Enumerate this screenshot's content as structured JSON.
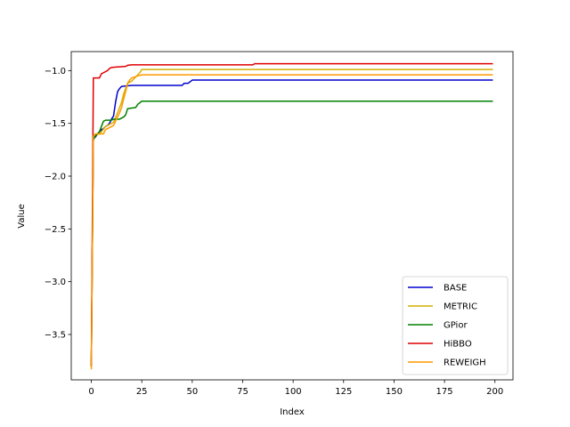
{
  "chart_data": {
    "type": "line",
    "title": "",
    "xlabel": "Index",
    "ylabel": "Value",
    "xlim": [
      -9.95,
      208.95
    ],
    "ylim": [
      -3.93,
      -0.82
    ],
    "xticks": [
      0,
      25,
      50,
      75,
      100,
      125,
      150,
      175,
      200
    ],
    "yticks": [
      -3.5,
      -3.0,
      -2.5,
      -2.0,
      -1.5,
      -1.0
    ],
    "ytick_labels": [
      "−3.5",
      "−3.0",
      "−2.5",
      "−2.0",
      "−1.5",
      "−1.0"
    ],
    "grid": false,
    "legend_position": "lower-right",
    "series": [
      {
        "name": "BASE",
        "color": "#0000cd",
        "points": [
          [
            0,
            -3.8
          ],
          [
            1,
            -1.63
          ],
          [
            2,
            -1.63
          ],
          [
            3,
            -1.6
          ],
          [
            4,
            -1.58
          ],
          [
            5,
            -1.56
          ],
          [
            6,
            -1.55
          ],
          [
            7,
            -1.53
          ],
          [
            8,
            -1.52
          ],
          [
            9,
            -1.5
          ],
          [
            10,
            -1.46
          ],
          [
            11,
            -1.43
          ],
          [
            12,
            -1.3
          ],
          [
            13,
            -1.2
          ],
          [
            14,
            -1.17
          ],
          [
            15,
            -1.15
          ],
          [
            20,
            -1.14
          ],
          [
            30,
            -1.14
          ],
          [
            40,
            -1.14
          ],
          [
            45,
            -1.14
          ],
          [
            46,
            -1.12
          ],
          [
            48,
            -1.12
          ],
          [
            50,
            -1.09
          ],
          [
            60,
            -1.09
          ],
          [
            80,
            -1.09
          ],
          [
            120,
            -1.09
          ],
          [
            160,
            -1.09
          ],
          [
            199,
            -1.09
          ]
        ]
      },
      {
        "name": "METRIC",
        "color": "#d4b000",
        "points": [
          [
            0,
            -3.8
          ],
          [
            1,
            -1.62
          ],
          [
            2,
            -1.61
          ],
          [
            4,
            -1.6
          ],
          [
            5,
            -1.58
          ],
          [
            7,
            -1.53
          ],
          [
            9,
            -1.51
          ],
          [
            11,
            -1.49
          ],
          [
            13,
            -1.4
          ],
          [
            15,
            -1.3
          ],
          [
            16,
            -1.22
          ],
          [
            17,
            -1.17
          ],
          [
            18,
            -1.12
          ],
          [
            20,
            -1.1
          ],
          [
            22,
            -1.06
          ],
          [
            24,
            -1.02
          ],
          [
            25,
            -0.99
          ],
          [
            40,
            -0.99
          ],
          [
            80,
            -0.99
          ],
          [
            120,
            -0.99
          ],
          [
            160,
            -0.99
          ],
          [
            199,
            -0.99
          ]
        ]
      },
      {
        "name": "GPior",
        "color": "#008000",
        "points": [
          [
            0,
            -3.8
          ],
          [
            1,
            -1.66
          ],
          [
            2,
            -1.62
          ],
          [
            4,
            -1.58
          ],
          [
            6,
            -1.48
          ],
          [
            7,
            -1.47
          ],
          [
            10,
            -1.47
          ],
          [
            11,
            -1.46
          ],
          [
            14,
            -1.46
          ],
          [
            16,
            -1.44
          ],
          [
            17,
            -1.42
          ],
          [
            18,
            -1.36
          ],
          [
            22,
            -1.35
          ],
          [
            23,
            -1.32
          ],
          [
            25,
            -1.29
          ],
          [
            40,
            -1.29
          ],
          [
            80,
            -1.29
          ],
          [
            120,
            -1.29
          ],
          [
            160,
            -1.29
          ],
          [
            199,
            -1.29
          ]
        ]
      },
      {
        "name": "HiBBO",
        "color": "#e00000",
        "points": [
          [
            0,
            -3.8
          ],
          [
            1,
            -1.07
          ],
          [
            4,
            -1.07
          ],
          [
            5,
            -1.03
          ],
          [
            6,
            -1.02
          ],
          [
            7,
            -1.01
          ],
          [
            8,
            -1.0
          ],
          [
            9,
            -0.98
          ],
          [
            10,
            -0.97
          ],
          [
            17,
            -0.96
          ],
          [
            18,
            -0.95
          ],
          [
            20,
            -0.945
          ],
          [
            40,
            -0.945
          ],
          [
            80,
            -0.945
          ],
          [
            81,
            -0.935
          ],
          [
            120,
            -0.935
          ],
          [
            160,
            -0.935
          ],
          [
            199,
            -0.935
          ]
        ]
      },
      {
        "name": "REWEIGH",
        "color": "#ff9900",
        "points": [
          [
            0,
            -3.83
          ],
          [
            1,
            -1.62
          ],
          [
            2,
            -1.6
          ],
          [
            4,
            -1.6
          ],
          [
            6,
            -1.6
          ],
          [
            7,
            -1.56
          ],
          [
            9,
            -1.54
          ],
          [
            11,
            -1.52
          ],
          [
            12,
            -1.48
          ],
          [
            14,
            -1.4
          ],
          [
            15,
            -1.35
          ],
          [
            16,
            -1.27
          ],
          [
            17,
            -1.2
          ],
          [
            18,
            -1.12
          ],
          [
            19,
            -1.09
          ],
          [
            20,
            -1.07
          ],
          [
            23,
            -1.05
          ],
          [
            25,
            -1.04
          ],
          [
            40,
            -1.04
          ],
          [
            80,
            -1.04
          ],
          [
            120,
            -1.04
          ],
          [
            160,
            -1.04
          ],
          [
            199,
            -1.04
          ]
        ]
      }
    ]
  }
}
